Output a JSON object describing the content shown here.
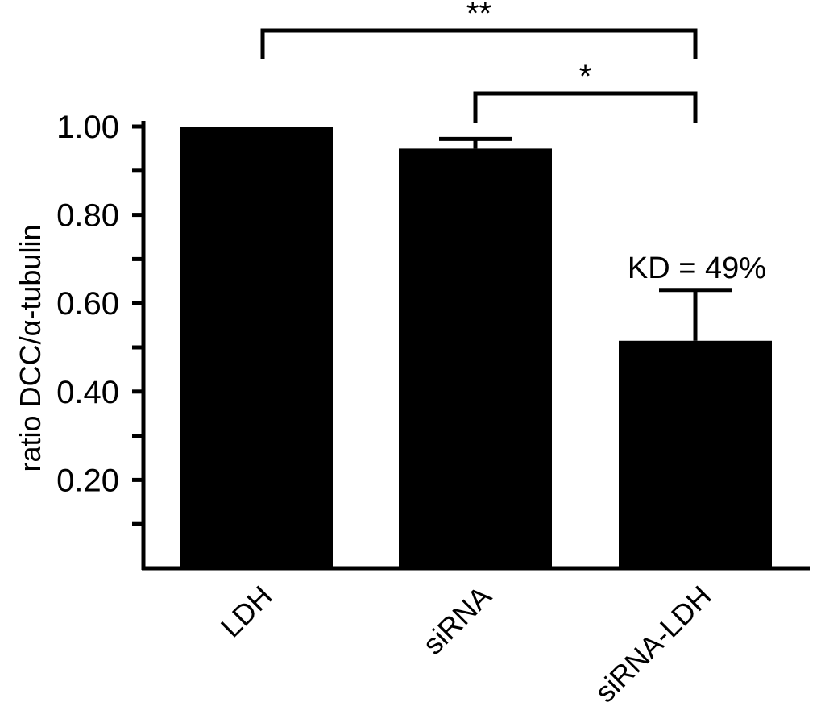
{
  "chart_data": {
    "type": "bar",
    "categories": [
      "LDH",
      "siRNA",
      "siRNA-LDH"
    ],
    "values": [
      1.0,
      0.95,
      0.515
    ],
    "errors": [
      0.0,
      0.022,
      0.115
    ],
    "ylabel": "ratio DCC/α-tubulin",
    "xlabel": "",
    "ylim": [
      0,
      1.0
    ],
    "y_tick_labels": [
      "1.00",
      "0.80",
      "0.60",
      "0.40",
      "0.20"
    ],
    "y_tick_values": [
      1.0,
      0.8,
      0.6,
      0.4,
      0.2
    ],
    "annotation": {
      "text": "KD = 49%",
      "category": "siRNA-LDH"
    },
    "significance": [
      {
        "from": "LDH",
        "to": "siRNA-LDH",
        "label": "**"
      },
      {
        "from": "siRNA",
        "to": "siRNA-LDH",
        "label": "*"
      }
    ],
    "grid": false,
    "legend": "none"
  }
}
